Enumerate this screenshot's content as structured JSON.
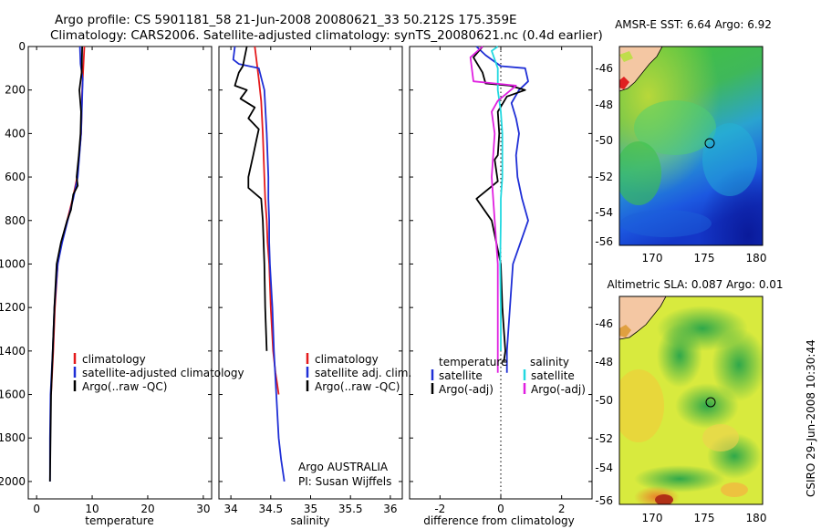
{
  "title": {
    "line1": "Argo profile: CS 5901181_58 21-Jun-2008 20080621_33 50.212S 175.359E",
    "line2": "Climatology: CARS2006. Satellite-adjusted climatology: synTS_20080621.nc (0.4d earlier)"
  },
  "side_label": "CSIRO 29-Jun-2008 10:30:44",
  "colors": {
    "red": "#e41a1c",
    "blue": "#1f2fd6",
    "black": "#000000",
    "cyan": "#22d8e0",
    "magenta": "#e020e0"
  },
  "chart_data": [
    {
      "type": "line",
      "name": "temperature-panel",
      "xlabel": "temperature",
      "xlim": [
        -1.5,
        31.5
      ],
      "ylim": [
        2080,
        0
      ],
      "xticks": [
        "0",
        "10",
        "20",
        "30"
      ],
      "xtick_values": [
        0,
        10,
        20,
        30
      ],
      "yticks": [
        "0",
        "200",
        "400",
        "600",
        "800",
        "1000",
        "1200",
        "1400",
        "1600",
        "1800",
        "2000"
      ],
      "ytick_values": [
        0,
        200,
        400,
        600,
        800,
        1000,
        1200,
        1400,
        1600,
        1800,
        2000
      ],
      "legend": [
        "climatology",
        "satellite-adjusted climatology",
        "Argo(..raw -QC)"
      ],
      "legend_colors": [
        "red",
        "blue",
        "black"
      ],
      "series": [
        {
          "name": "climatology",
          "color": "red",
          "x": [
            8.6,
            8.4,
            8.2,
            8.0,
            7.3,
            6.5,
            5.5,
            4.5,
            3.8,
            3.3,
            3.0,
            2.8,
            2.6
          ],
          "y": [
            0,
            100,
            200,
            400,
            600,
            700,
            800,
            900,
            1000,
            1200,
            1400,
            1500,
            1600
          ]
        },
        {
          "name": "satellite-adjusted climatology",
          "color": "blue",
          "x": [
            7.8,
            7.9,
            8.3,
            8.0,
            7.4,
            6.6,
            5.6,
            4.6,
            3.8,
            3.2,
            2.9,
            2.7,
            2.5,
            2.4,
            2.4
          ],
          "y": [
            0,
            80,
            150,
            400,
            600,
            700,
            800,
            900,
            1000,
            1200,
            1400,
            1500,
            1600,
            1800,
            2000
          ]
        },
        {
          "name": "Argo(..raw -QC)",
          "color": "black",
          "x": [
            8.2,
            8.1,
            7.7,
            8.0,
            7.9,
            7.6,
            7.2,
            7.4,
            6.6,
            6.2,
            5.5,
            4.4,
            3.6,
            3.2,
            2.9,
            2.6,
            2.4
          ],
          "y": [
            0,
            120,
            200,
            300,
            400,
            500,
            600,
            640,
            680,
            750,
            800,
            900,
            1000,
            1200,
            1400,
            1600,
            2000
          ]
        }
      ]
    },
    {
      "type": "line",
      "name": "salinity-panel",
      "xlabel": "salinity",
      "xlim": [
        33.85,
        36.15
      ],
      "ylim": [
        2080,
        0
      ],
      "xticks": [
        "34",
        "34.5",
        "35",
        "35.5",
        "36"
      ],
      "xtick_values": [
        34,
        34.5,
        35,
        35.5,
        36
      ],
      "legend": [
        "climatology",
        "satellite adj. clim.",
        "Argo(..raw -QC)"
      ],
      "legend_colors": [
        "red",
        "blue",
        "black"
      ],
      "annotation": [
        "Argo AUSTRALIA",
        "PI: Susan Wijffels"
      ],
      "series": [
        {
          "name": "climatology",
          "color": "red",
          "x": [
            34.3,
            34.32,
            34.35,
            34.38,
            34.4,
            34.42,
            34.43,
            34.45,
            34.46,
            34.48,
            34.5,
            34.53,
            34.56,
            34.58,
            34.6
          ],
          "y": [
            0,
            60,
            150,
            250,
            400,
            600,
            700,
            800,
            900,
            1000,
            1200,
            1400,
            1500,
            1550,
            1600
          ]
        },
        {
          "name": "satellite adj. clim.",
          "color": "blue",
          "x": [
            34.05,
            34.03,
            34.1,
            34.35,
            34.42,
            34.45,
            34.47,
            34.47,
            34.48,
            34.48,
            34.49,
            34.52,
            34.54,
            34.57,
            34.6,
            34.63,
            34.67
          ],
          "y": [
            0,
            60,
            80,
            100,
            200,
            400,
            600,
            700,
            800,
            900,
            1000,
            1200,
            1400,
            1600,
            1800,
            1900,
            2000
          ]
        },
        {
          "name": "Argo(..raw -QC)",
          "color": "black",
          "x": [
            34.2,
            34.15,
            34.1,
            34.05,
            34.2,
            34.12,
            34.3,
            34.22,
            34.35,
            34.32,
            34.28,
            34.22,
            34.22,
            34.38,
            34.4,
            34.42,
            34.43,
            34.45
          ],
          "y": [
            0,
            90,
            120,
            180,
            200,
            240,
            280,
            330,
            380,
            430,
            500,
            600,
            650,
            700,
            800,
            1000,
            1200,
            1400
          ]
        }
      ]
    },
    {
      "type": "line",
      "name": "difference-panel",
      "xlabel": "difference from climatology",
      "xlim": [
        -3.0,
        3.0
      ],
      "ylim": [
        2080,
        0
      ],
      "xticks": [
        "-2",
        "0",
        "2"
      ],
      "xtick_values": [
        -2,
        0,
        2
      ],
      "zero_line": 0,
      "legend_left_header": "temperature",
      "legend_right_header": "salinity",
      "legend": [
        "satellite",
        "Argo(-adj)",
        "satellite",
        "Argo(-adj)"
      ],
      "legend_colors": [
        "blue",
        "black",
        "cyan",
        "magenta"
      ],
      "series": [
        {
          "name": "temperature satellite",
          "color": "blue",
          "x": [
            -0.8,
            -0.5,
            0.0,
            0.8,
            0.9,
            0.6,
            0.35,
            0.5,
            0.6,
            0.5,
            0.55,
            0.7,
            0.9,
            0.65,
            0.4,
            0.3,
            0.2,
            0.2
          ],
          "y": [
            0,
            40,
            90,
            100,
            160,
            200,
            260,
            330,
            400,
            500,
            600,
            700,
            800,
            900,
            1000,
            1200,
            1400,
            1500
          ]
        },
        {
          "name": "temperature Argo(-adj)",
          "color": "black",
          "x": [
            -0.6,
            -0.9,
            -0.6,
            -0.5,
            0.3,
            0.8,
            0.2,
            -0.1,
            -0.05,
            -0.1,
            -0.2,
            -0.1,
            -0.8,
            -0.3,
            0.0,
            0.05,
            0.1,
            0.15,
            0.1
          ],
          "y": [
            0,
            50,
            120,
            170,
            180,
            200,
            230,
            300,
            400,
            500,
            520,
            620,
            700,
            800,
            1000,
            1200,
            1300,
            1400,
            1450
          ]
        },
        {
          "name": "salinity satellite",
          "color": "cyan",
          "x": [
            -0.1,
            -0.3,
            -0.1,
            -0.1,
            0.0,
            0.05,
            0.05,
            0.05,
            0.0,
            0.0,
            -0.02,
            0.0,
            0.0
          ],
          "y": [
            0,
            20,
            100,
            200,
            300,
            400,
            500,
            600,
            700,
            800,
            1000,
            1200,
            1400
          ]
        },
        {
          "name": "salinity Argo(-adj)",
          "color": "magenta",
          "x": [
            -0.6,
            -1.0,
            -0.9,
            -0.2,
            0.5,
            -0.1,
            -0.3,
            -0.2,
            -0.3,
            -0.2,
            -0.1,
            -0.1,
            -0.1,
            -0.1
          ],
          "y": [
            0,
            50,
            160,
            170,
            180,
            250,
            300,
            400,
            600,
            800,
            1000,
            1200,
            1400,
            1500
          ]
        }
      ]
    }
  ],
  "maps": [
    {
      "name": "sst-map",
      "title": "AMSR-E SST: 6.64 Argo: 6.92",
      "xticks": [
        "170",
        "175",
        "180"
      ],
      "yticks": [
        "-46",
        "-48",
        "-50",
        "-52",
        "-54",
        "-56"
      ],
      "lon_range": [
        167.5,
        181.0
      ],
      "lat_range": [
        -56.2,
        -44.8
      ],
      "float_position": [
        175.359,
        -50.212
      ]
    },
    {
      "name": "sla-map",
      "title": "Altimetric SLA: 0.087 Argo: 0.01",
      "xticks": [
        "170",
        "175",
        "180"
      ],
      "yticks": [
        "-46",
        "-48",
        "-50",
        "-52",
        "-54",
        "-56"
      ],
      "lon_range": [
        167.5,
        181.0
      ],
      "lat_range": [
        -56.2,
        -44.8
      ],
      "float_position": [
        175.359,
        -50.212
      ]
    }
  ]
}
